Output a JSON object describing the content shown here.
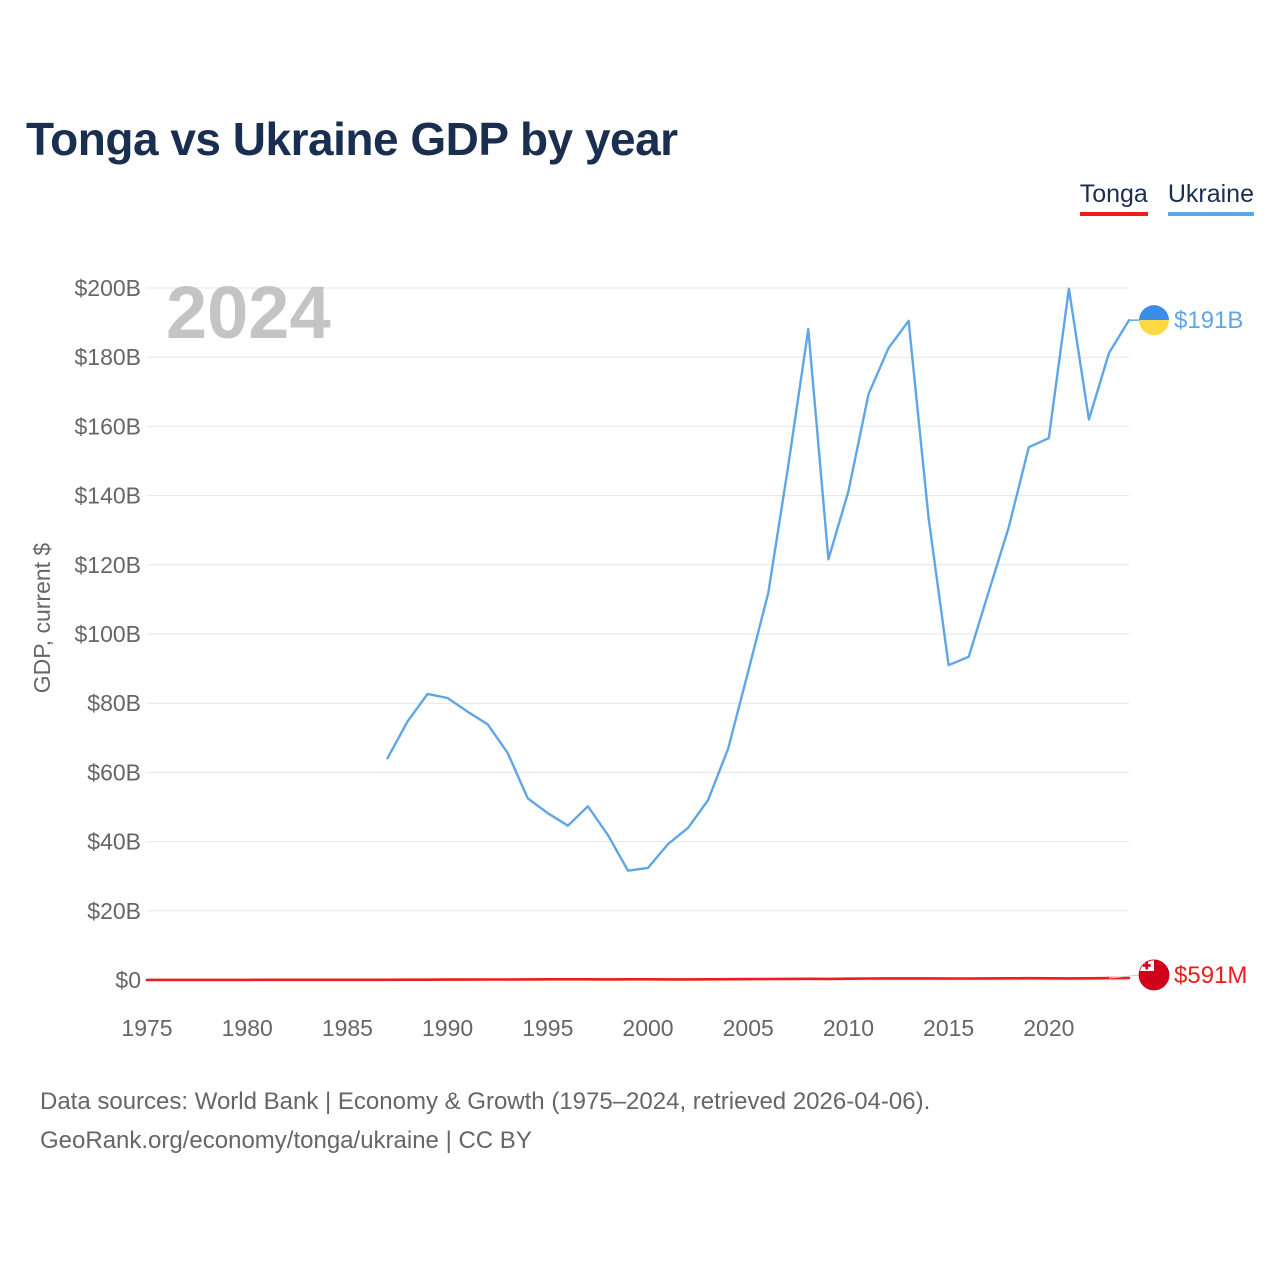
{
  "title": "Tonga vs Ukraine GDP by year",
  "legend": [
    {
      "label": "Tonga",
      "color": "#ee1c1c"
    },
    {
      "label": "Ukraine",
      "color": "#5ea6e6"
    }
  ],
  "year_watermark": "2024",
  "footer": {
    "line1": "Data sources: World Bank | Economy & Growth (1975–2024, retrieved 2026-04-06).",
    "line2": "GeoRank.org/economy/tonga/ukraine | CC BY"
  },
  "chart_data": {
    "type": "line",
    "title": "Tonga vs Ukraine GDP by year",
    "xlabel": "",
    "ylabel": "GDP, current $",
    "xlim": [
      1975,
      2024
    ],
    "ylim": [
      0,
      200
    ],
    "y_unit": "billions USD",
    "grid": true,
    "legend_position": "top-right",
    "x_ticks": [
      1975,
      1980,
      1985,
      1990,
      1995,
      2000,
      2005,
      2010,
      2015,
      2020
    ],
    "x_tick_labels": [
      "1975",
      "1980",
      "1985",
      "1990",
      "1995",
      "2000",
      "2005",
      "2010",
      "2015",
      "2020"
    ],
    "y_ticks": [
      0,
      20,
      40,
      60,
      80,
      100,
      120,
      140,
      160,
      180,
      200
    ],
    "y_tick_labels": [
      "$0",
      "$20B",
      "$40B",
      "$60B",
      "$80B",
      "$100B",
      "$120B",
      "$140B",
      "$160B",
      "$180B",
      "$200B"
    ],
    "series": [
      {
        "name": "Tonga",
        "color": "#ee1c1c",
        "end_label": "$591M",
        "flag_icon": "tonga-flag-icon",
        "points": [
          [
            1975,
            0.02
          ],
          [
            1976,
            0.02
          ],
          [
            1977,
            0.02
          ],
          [
            1978,
            0.03
          ],
          [
            1979,
            0.03
          ],
          [
            1980,
            0.04
          ],
          [
            1981,
            0.05
          ],
          [
            1982,
            0.05
          ],
          [
            1983,
            0.06
          ],
          [
            1984,
            0.06
          ],
          [
            1985,
            0.06
          ],
          [
            1986,
            0.06
          ],
          [
            1987,
            0.07
          ],
          [
            1988,
            0.08
          ],
          [
            1989,
            0.1
          ],
          [
            1990,
            0.12
          ],
          [
            1991,
            0.13
          ],
          [
            1992,
            0.14
          ],
          [
            1993,
            0.15
          ],
          [
            1994,
            0.17
          ],
          [
            1995,
            0.19
          ],
          [
            1996,
            0.21
          ],
          [
            1997,
            0.2
          ],
          [
            1998,
            0.18
          ],
          [
            1999,
            0.19
          ],
          [
            2000,
            0.2
          ],
          [
            2001,
            0.18
          ],
          [
            2002,
            0.18
          ],
          [
            2003,
            0.2
          ],
          [
            2004,
            0.23
          ],
          [
            2005,
            0.26
          ],
          [
            2006,
            0.29
          ],
          [
            2007,
            0.31
          ],
          [
            2008,
            0.36
          ],
          [
            2009,
            0.32
          ],
          [
            2010,
            0.37
          ],
          [
            2011,
            0.42
          ],
          [
            2012,
            0.47
          ],
          [
            2013,
            0.45
          ],
          [
            2014,
            0.45
          ],
          [
            2015,
            0.44
          ],
          [
            2016,
            0.42
          ],
          [
            2017,
            0.45
          ],
          [
            2018,
            0.48
          ],
          [
            2019,
            0.51
          ],
          [
            2020,
            0.49
          ],
          [
            2021,
            0.47
          ],
          [
            2022,
            0.49
          ],
          [
            2023,
            0.55
          ],
          [
            2024,
            0.591
          ]
        ]
      },
      {
        "name": "Ukraine",
        "color": "#5ea6e6",
        "end_label": "$191B",
        "flag_icon": "ukraine-flag-icon",
        "points": [
          [
            1987,
            64.1
          ],
          [
            1988,
            74.7
          ],
          [
            1989,
            82.7
          ],
          [
            1990,
            81.5
          ],
          [
            1991,
            77.5
          ],
          [
            1992,
            73.9
          ],
          [
            1993,
            65.6
          ],
          [
            1994,
            52.5
          ],
          [
            1995,
            48.2
          ],
          [
            1996,
            44.6
          ],
          [
            1997,
            50.2
          ],
          [
            1998,
            41.9
          ],
          [
            1999,
            31.6
          ],
          [
            2000,
            32.4
          ],
          [
            2001,
            39.3
          ],
          [
            2002,
            44.0
          ],
          [
            2003,
            52.0
          ],
          [
            2004,
            66.9
          ],
          [
            2005,
            89.2
          ],
          [
            2006,
            111.9
          ],
          [
            2007,
            148.7
          ],
          [
            2008,
            188.1
          ],
          [
            2009,
            121.6
          ],
          [
            2010,
            141.2
          ],
          [
            2011,
            169.3
          ],
          [
            2012,
            182.6
          ],
          [
            2013,
            190.5
          ],
          [
            2014,
            133.5
          ],
          [
            2015,
            91.0
          ],
          [
            2016,
            93.4
          ],
          [
            2017,
            112.2
          ],
          [
            2018,
            130.9
          ],
          [
            2019,
            154.0
          ],
          [
            2020,
            156.6
          ],
          [
            2021,
            199.8
          ],
          [
            2022,
            162.0
          ],
          [
            2023,
            181.2
          ],
          [
            2024,
            190.7
          ]
        ]
      }
    ]
  }
}
